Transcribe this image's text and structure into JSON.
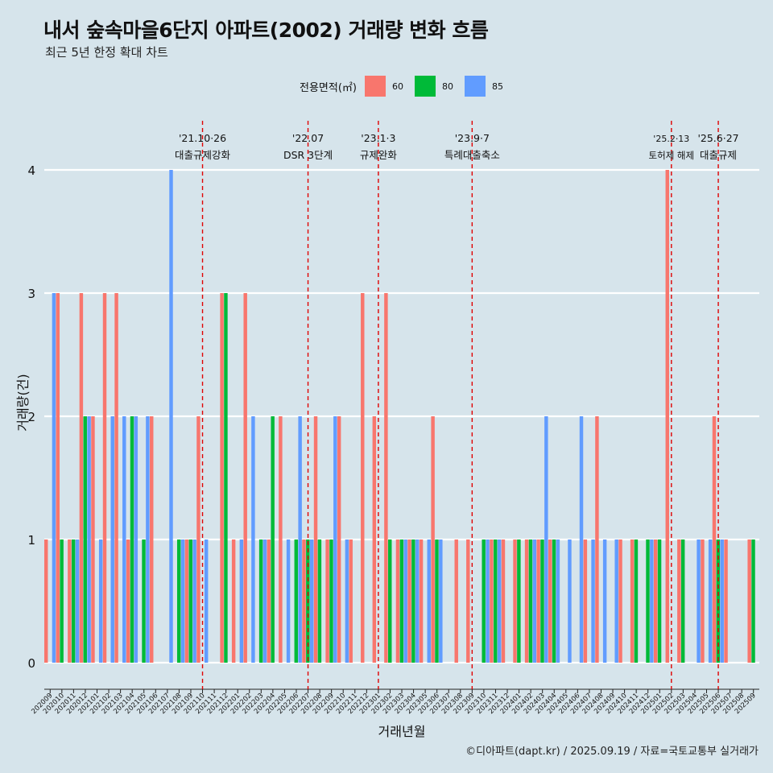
{
  "title": "내서 숲속마을6단지 아파트(2002) 거래량 변화 흐름",
  "subtitle": "최근 5년 한정 확대 차트",
  "caption": "©디아파트(dapt.kr) / 2025.09.19 / 자료=국토교통부 실거래가",
  "legend": {
    "title": "전용면적(㎡)",
    "items": [
      {
        "label": "60",
        "color": "#f8766d"
      },
      {
        "label": "80",
        "color": "#00ba38"
      },
      {
        "label": "85",
        "color": "#619cff"
      }
    ]
  },
  "chart_data": {
    "type": "bar",
    "xlabel": "거래년월",
    "ylabel": "거래량(건)",
    "ylim": [
      0,
      4
    ],
    "yticks": [
      0,
      1,
      2,
      3,
      4
    ],
    "categories": [
      "202009",
      "202010",
      "202011",
      "202012",
      "202101",
      "202102",
      "202103",
      "202104",
      "202105",
      "202106",
      "202107",
      "202108",
      "202109",
      "202110",
      "202111",
      "202112",
      "202201",
      "202202",
      "202203",
      "202204",
      "202205",
      "202206",
      "202207",
      "202208",
      "202209",
      "202210",
      "202211",
      "202212",
      "202301",
      "202302",
      "202303",
      "202304",
      "202305",
      "202306",
      "202307",
      "202308",
      "202309",
      "202310",
      "202311",
      "202312",
      "202401",
      "202402",
      "202403",
      "202404",
      "202405",
      "202406",
      "202407",
      "202408",
      "202409",
      "202410",
      "202411",
      "202412",
      "202501",
      "202502",
      "202503",
      "202504",
      "202505",
      "202506",
      "202507",
      "202508",
      "202509"
    ],
    "series": [
      {
        "name": "60",
        "color": "#f8766d",
        "values": [
          1,
          3,
          1,
          3,
          2,
          3,
          3,
          1,
          0,
          2,
          0,
          0,
          1,
          2,
          0,
          3,
          1,
          3,
          0,
          1,
          2,
          0,
          1,
          2,
          1,
          2,
          1,
          3,
          2,
          3,
          1,
          1,
          1,
          2,
          0,
          1,
          1,
          0,
          1,
          1,
          1,
          1,
          1,
          1,
          0,
          0,
          1,
          2,
          0,
          1,
          1,
          0,
          1,
          4,
          1,
          0,
          1,
          2,
          1,
          0,
          1
        ]
      },
      {
        "name": "80",
        "color": "#00ba38",
        "values": [
          0,
          1,
          1,
          2,
          0,
          0,
          0,
          2,
          1,
          0,
          0,
          1,
          1,
          0,
          0,
          3,
          0,
          0,
          1,
          2,
          0,
          1,
          1,
          1,
          1,
          0,
          0,
          0,
          0,
          1,
          1,
          1,
          0,
          1,
          0,
          0,
          0,
          1,
          1,
          0,
          1,
          1,
          1,
          1,
          0,
          0,
          0,
          0,
          0,
          0,
          1,
          1,
          1,
          0,
          1,
          0,
          0,
          1,
          0,
          0,
          1
        ]
      },
      {
        "name": "85",
        "color": "#619cff",
        "values": [
          3,
          0,
          1,
          2,
          1,
          2,
          2,
          2,
          2,
          0,
          4,
          1,
          1,
          1,
          0,
          0,
          1,
          2,
          1,
          0,
          1,
          2,
          1,
          0,
          2,
          1,
          0,
          0,
          0,
          0,
          1,
          1,
          1,
          1,
          0,
          0,
          0,
          1,
          1,
          0,
          0,
          1,
          2,
          1,
          1,
          2,
          1,
          1,
          1,
          0,
          0,
          1,
          0,
          0,
          0,
          1,
          1,
          1,
          0,
          0,
          0
        ]
      }
    ],
    "annotations": [
      {
        "date": "'21.10·26",
        "label": "대출규제강화",
        "x": "202110"
      },
      {
        "date": "'22.07",
        "label": "DSR 3단계",
        "x": "202207"
      },
      {
        "date": "'23.1·3",
        "label": "규제완화",
        "x": "202301"
      },
      {
        "date": "'23.9·7",
        "label": "특례대출축소",
        "x": "202309"
      },
      {
        "date": "'25.2·13",
        "label": "토허제 해제",
        "x": "202502"
      },
      {
        "date": "'25.6·27",
        "label": "대출규제",
        "x": "202506"
      }
    ],
    "grid": true,
    "legend_position": "top"
  }
}
